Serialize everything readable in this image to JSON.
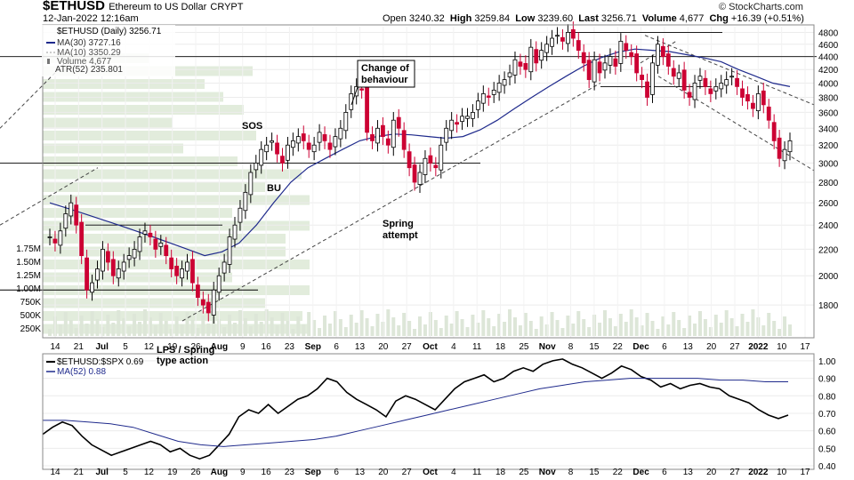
{
  "header": {
    "symbol": "$ETHUSD",
    "description": "Ethereum to US Dollar",
    "exchange": "CRYPT",
    "datetime": "12-Jan-2022 12:16am",
    "open_label": "Open",
    "open": "3240.32",
    "high_label": "High",
    "high": "3259.84",
    "low_label": "Low",
    "low": "3239.60",
    "last_label": "Last",
    "last": "3256.71",
    "volume_label": "Volume",
    "volume": "4,677",
    "chg_label": "Chg",
    "chg": "+16.39 (+0.51%)",
    "brand": "© StockCharts.com"
  },
  "legend": {
    "price": "$ETHUSD (Daily) 3256.71",
    "ma30": "MA(30) 3727.16",
    "ma10": "MA(10) 3350.29",
    "volume": "Volume 4,677",
    "atr": "ATR(52) 235.801",
    "rs": "$ETHUSD:$SPX 0.69",
    "rs_ma": "MA(52) 0.88"
  },
  "annotations": {
    "change": [
      "Change of",
      "behaviour"
    ],
    "sos": "SOS",
    "bu": "BU",
    "spring": [
      "Spring",
      "attempt"
    ],
    "lps": [
      "LPS / Spring",
      "type action"
    ]
  },
  "colors": {
    "up": "#000000",
    "down": "#cc0033",
    "ma30": "#1f2a8c",
    "ma10": "#999999",
    "rs": "#000000",
    "rs_ma": "#1f2a8c",
    "vbp": "#e2ecdc"
  },
  "chart_data": [
    {
      "type": "candlestick",
      "title": "$ETHUSD Ethereum to US Dollar CRYPT (Daily)",
      "x_tick_labels": [
        "14",
        "21",
        "Jul",
        "5",
        "12",
        "19",
        "26",
        "Aug",
        "9",
        "16",
        "23",
        "Sep",
        "6",
        "13",
        "20",
        "27",
        "Oct",
        "4",
        "11",
        "18",
        "25",
        "Nov",
        "8",
        "15",
        "22",
        "Dec",
        "6",
        "13",
        "20",
        "27",
        "2022",
        "10",
        "17"
      ],
      "y_ticks": [
        1800,
        2000,
        2200,
        2400,
        2600,
        2800,
        3000,
        3200,
        3400,
        3600,
        3800,
        4000,
        4200,
        4400,
        4600,
        4800
      ],
      "ylim": [
        1600,
        4900
      ],
      "y_scale": "log",
      "volume_ticks": [
        "250K",
        "500K",
        "750K",
        "1.00M",
        "1.25M",
        "1.50M",
        "1.75M"
      ],
      "series": [
        {
          "name": "$ETHUSD",
          "ohlc_approx_closes": [
            2300,
            2250,
            2350,
            2500,
            2600,
            2400,
            2150,
            1900,
            1950,
            2050,
            2200,
            2100,
            2000,
            2050,
            2100,
            2150,
            2200,
            2300,
            2350,
            2300,
            2200,
            2250,
            2150,
            2050,
            2000,
            2050,
            2100,
            1950,
            1850,
            1800,
            1750,
            1900,
            2000,
            2100,
            2300,
            2400,
            2550,
            2700,
            2900,
            3000,
            3150,
            3200,
            3250,
            3100,
            3000,
            3200,
            3250,
            3300,
            3250,
            3150,
            3200,
            3350,
            3250,
            3150,
            3300,
            3400,
            3600,
            3850,
            3950,
            3900,
            3350,
            3250,
            3400,
            3300,
            3200,
            3500,
            3400,
            3150,
            2950,
            2800,
            2900,
            3050,
            3000,
            2950,
            3200,
            3400,
            3500,
            3450,
            3550,
            3550,
            3600,
            3750,
            3850,
            3800,
            3900,
            4000,
            4050,
            4150,
            4350,
            4250,
            4200,
            4550,
            4300,
            4500,
            4600,
            4700,
            4750,
            4650,
            4800,
            4700,
            4500,
            4300,
            4050,
            4350,
            4150,
            4300,
            4400,
            4250,
            4650,
            4500,
            4400,
            4150,
            4050,
            3800,
            4300,
            4600,
            4400,
            4250,
            4100,
            4150,
            3900,
            3800,
            4000,
            4100,
            3950,
            3850,
            3950,
            4000,
            4050,
            4100,
            3950,
            3800,
            3750,
            3650,
            3850,
            3700,
            3500,
            3250,
            3050,
            3150,
            3250
          ]
        },
        {
          "name": "MA(30)",
          "values": [
            2600,
            2550,
            2500,
            2450,
            2400,
            2350,
            2300,
            2250,
            2200,
            2150,
            2180,
            2250,
            2400,
            2600,
            2800,
            2950,
            3050,
            3150,
            3250,
            3300,
            3330,
            3320,
            3300,
            3280,
            3300,
            3380,
            3500,
            3650,
            3800,
            3950,
            4100,
            4250,
            4380,
            4470,
            4520,
            4500,
            4480,
            4430,
            4380,
            4320,
            4200,
            4100,
            4000,
            3950
          ]
        },
        {
          "name": "MA(10)"
        },
        {
          "name": "Volume"
        },
        {
          "name": "ATR(52)"
        }
      ],
      "annotations": [
        "Change of behaviour",
        "SOS",
        "BU",
        "Spring attempt",
        "LPS / Spring type action"
      ]
    },
    {
      "type": "line",
      "title": "$ETHUSD:$SPX",
      "y_ticks": [
        0.4,
        0.5,
        0.6,
        0.7,
        0.8,
        0.9,
        1.0
      ],
      "ylim": [
        0.38,
        1.03
      ],
      "series": [
        {
          "name": "$ETHUSD:$SPX",
          "values": [
            0.58,
            0.62,
            0.65,
            0.63,
            0.57,
            0.52,
            0.49,
            0.46,
            0.48,
            0.5,
            0.52,
            0.54,
            0.52,
            0.48,
            0.5,
            0.46,
            0.44,
            0.46,
            0.52,
            0.58,
            0.68,
            0.72,
            0.7,
            0.75,
            0.7,
            0.74,
            0.78,
            0.8,
            0.84,
            0.9,
            0.88,
            0.82,
            0.78,
            0.75,
            0.72,
            0.68,
            0.77,
            0.8,
            0.78,
            0.75,
            0.72,
            0.78,
            0.84,
            0.88,
            0.9,
            0.92,
            0.88,
            0.9,
            0.94,
            0.96,
            0.94,
            0.98,
            1.0,
            1.01,
            0.98,
            0.96,
            0.93,
            0.9,
            0.93,
            0.97,
            0.95,
            0.91,
            0.89,
            0.85,
            0.87,
            0.84,
            0.86,
            0.87,
            0.85,
            0.84,
            0.8,
            0.78,
            0.76,
            0.72,
            0.69,
            0.67,
            0.69
          ]
        },
        {
          "name": "MA(52)",
          "values": [
            0.66,
            0.66,
            0.65,
            0.64,
            0.62,
            0.58,
            0.54,
            0.52,
            0.51,
            0.52,
            0.53,
            0.54,
            0.55,
            0.57,
            0.6,
            0.63,
            0.66,
            0.69,
            0.72,
            0.75,
            0.78,
            0.81,
            0.84,
            0.86,
            0.88,
            0.89,
            0.9,
            0.9,
            0.9,
            0.9,
            0.89,
            0.89,
            0.88,
            0.88
          ]
        }
      ]
    }
  ]
}
